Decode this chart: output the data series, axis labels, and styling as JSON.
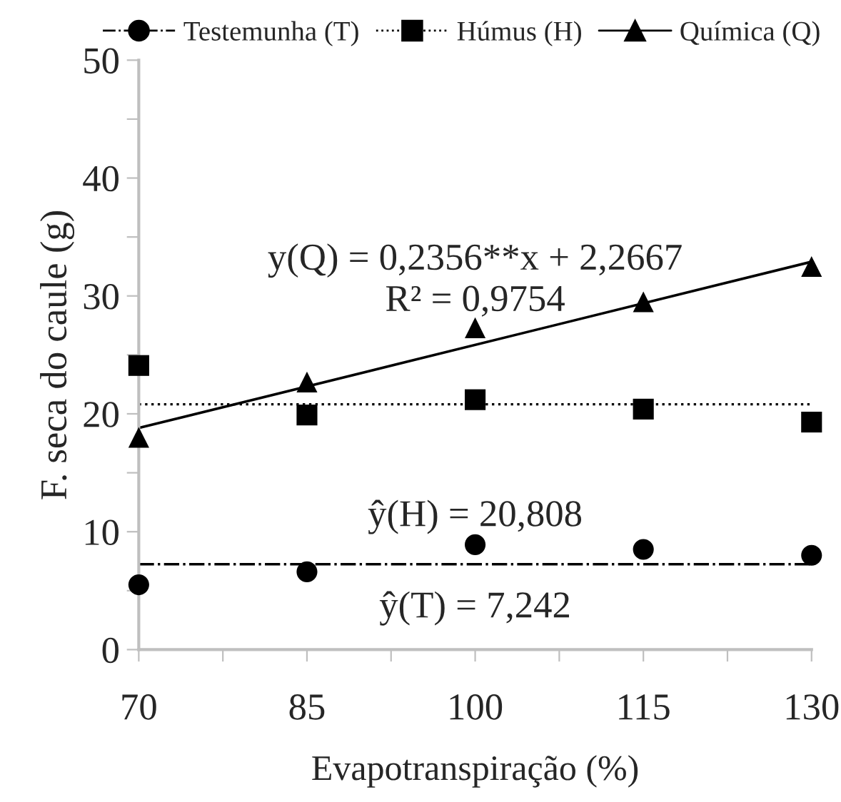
{
  "chart_data": {
    "type": "scatter",
    "xlabel": "Evapotranspiração (%)",
    "ylabel": "F. seca do caule (g)",
    "x": [
      70,
      85,
      100,
      115,
      130
    ],
    "series": [
      {
        "name": "Testemunha (T)",
        "color": "#000000",
        "marker": "circle",
        "line_style": "dashdot",
        "values": [
          5.5,
          6.6,
          8.9,
          8.5,
          8.0
        ]
      },
      {
        "name": "Húmus (H)",
        "color": "#000000",
        "marker": "square",
        "line_style": "dotted",
        "values": [
          24.1,
          19.9,
          21.2,
          20.4,
          19.3
        ]
      },
      {
        "name": "Química (Q)",
        "color": "#000000",
        "marker": "triangle",
        "line_style": "solid",
        "values": [
          18.0,
          22.7,
          27.3,
          29.5,
          32.5
        ]
      },
      {
        "type": "line",
        "color": "#000000",
        "line_style": "solid",
        "x": [
          70,
          130
        ],
        "values": [
          18.8,
          32.9
        ]
      }
    ],
    "ref_lines": [
      {
        "axis": "y",
        "value": 7.242,
        "color": "#000000",
        "line_style": "dashdot"
      },
      {
        "axis": "y",
        "value": 20.808,
        "color": "#000000",
        "line_style": "dotted"
      }
    ],
    "annotations": [
      "y(Q) = 0,2356**x + 2,2667",
      "R² = 0,9754",
      "ŷ(H) = 20,808",
      "ŷ(T) = 7,242"
    ],
    "xlim": [
      70,
      130
    ],
    "xticks": [
      70,
      {
        "value": 77.5,
        "label": null
      },
      85,
      {
        "value": 92.5,
        "label": null
      },
      100,
      {
        "value": 107.5,
        "label": null
      },
      115,
      {
        "value": 122.5,
        "label": null
      },
      130
    ],
    "ylim": [
      0,
      50
    ],
    "yticks": [
      0,
      {
        "value": 5,
        "label": null
      },
      10,
      {
        "value": 15,
        "label": null
      },
      20,
      {
        "value": 25,
        "label": null
      },
      30,
      {
        "value": 35,
        "label": null
      },
      40,
      {
        "value": 45,
        "label": null
      },
      50
    ],
    "grid": false,
    "legend": "top"
  }
}
